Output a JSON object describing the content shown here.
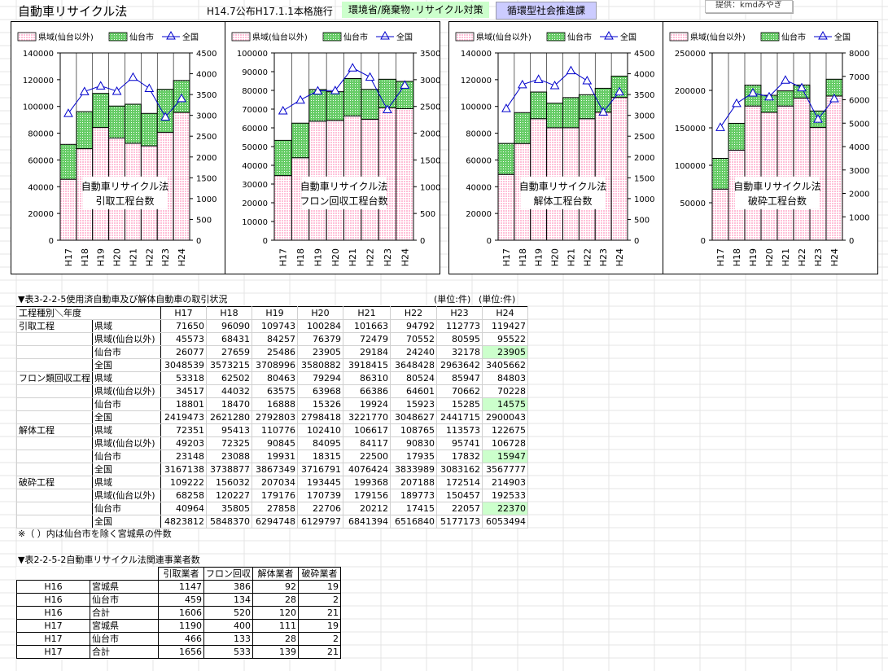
{
  "header": {
    "title": "自動車リサイクル法",
    "law_note": "H14.7公布H17.1.1本格施行",
    "ministry": "環境省/廃棄物･リサイクル対策",
    "section": "循環型社会推進課",
    "source_button": "提供：kmdみやぎ"
  },
  "colors": {
    "prefecture": "#ffc0d8",
    "sendai": "#66cc66",
    "national": "#0000cc"
  },
  "legend": {
    "prefecture": "県域(仙台以外)",
    "sendai": "仙台市",
    "national": "全国"
  },
  "chart_data": [
    {
      "type": "bar",
      "stacked": true,
      "categories": [
        "H17",
        "H18",
        "H19",
        "H20",
        "H21",
        "H22",
        "H23",
        "H24"
      ],
      "series": [
        {
          "name": "県域(仙台以外)",
          "values": [
            45573,
            68431,
            84257,
            76379,
            72479,
            70552,
            80595,
            95522
          ]
        },
        {
          "name": "仙台市",
          "values": [
            26077,
            27659,
            25486,
            23905,
            29184,
            24240,
            32178,
            23905
          ]
        },
        {
          "name": "全国",
          "axis": "right",
          "type": "line",
          "values": [
            3048539,
            3573215,
            3708996,
            3580882,
            3918415,
            3648428,
            2963642,
            3405662
          ]
        }
      ],
      "ylim": [
        0,
        140000
      ],
      "yticks": [
        "0",
        "20000",
        "40000",
        "60000",
        "80000",
        "100000",
        "120000",
        "140000"
      ],
      "y2lim": [
        0,
        4500000
      ],
      "y2ticks": [
        "0",
        "500",
        "1000",
        "1500",
        "2000",
        "2500",
        "3000",
        "3500",
        "4000",
        "4500"
      ],
      "annotation_line1": "自動車リサイクル法",
      "annotation_line2": "引取工程台数"
    },
    {
      "type": "bar",
      "stacked": true,
      "categories": [
        "H17",
        "H18",
        "H19",
        "H20",
        "H21",
        "H22",
        "H23",
        "H24"
      ],
      "series": [
        {
          "name": "県域(仙台以外)",
          "values": [
            34517,
            44032,
            63575,
            63968,
            66386,
            64601,
            70662,
            70228
          ]
        },
        {
          "name": "仙台市",
          "values": [
            18801,
            18470,
            16888,
            15326,
            19924,
            15923,
            15285,
            14575
          ]
        },
        {
          "name": "全国",
          "axis": "right",
          "type": "line",
          "values": [
            2419473,
            2621280,
            2792803,
            2798418,
            3221770,
            3048627,
            2441715,
            2900043
          ]
        }
      ],
      "ylim": [
        0,
        100000
      ],
      "yticks": [
        "0",
        "10000",
        "20000",
        "30000",
        "40000",
        "50000",
        "60000",
        "70000",
        "80000",
        "90000",
        "100000"
      ],
      "y2lim": [
        0,
        3500000
      ],
      "y2ticks": [
        "0",
        "500",
        "1000",
        "1500",
        "2000",
        "2500",
        "3000",
        "3500"
      ],
      "annotation_line1": "自動車リサイクル法",
      "annotation_line2": "フロン回収工程台数"
    },
    {
      "type": "bar",
      "stacked": true,
      "categories": [
        "H17",
        "H18",
        "H19",
        "H20",
        "H21",
        "H22",
        "H23",
        "H24"
      ],
      "series": [
        {
          "name": "県域(仙台以外)",
          "values": [
            49203,
            72325,
            90845,
            84095,
            84117,
            90830,
            95741,
            106728
          ]
        },
        {
          "name": "仙台市",
          "values": [
            23148,
            23088,
            19931,
            18315,
            22500,
            17935,
            17832,
            15947
          ]
        },
        {
          "name": "全国",
          "axis": "right",
          "type": "line",
          "values": [
            3167138,
            3738877,
            3867349,
            3716791,
            4076424,
            3833989,
            3083162,
            3567777
          ]
        }
      ],
      "ylim": [
        0,
        140000
      ],
      "yticks": [
        "0",
        "20000",
        "40000",
        "60000",
        "80000",
        "100000",
        "120000",
        "140000"
      ],
      "y2lim": [
        0,
        4500000
      ],
      "y2ticks": [
        "0",
        "500",
        "1000",
        "1500",
        "2000",
        "2500",
        "3000",
        "3500",
        "4000",
        "4500"
      ],
      "annotation_line1": "自動車リサイクル法",
      "annotation_line2": "解体工程台数"
    },
    {
      "type": "bar",
      "stacked": true,
      "categories": [
        "H17",
        "H18",
        "H19",
        "H20",
        "H21",
        "H22",
        "H23",
        "H24"
      ],
      "series": [
        {
          "name": "県域(仙台以外)",
          "values": [
            68258,
            120227,
            179176,
            170739,
            179156,
            189773,
            150457,
            192533
          ]
        },
        {
          "name": "仙台市",
          "values": [
            40964,
            35805,
            27858,
            22706,
            20212,
            17415,
            22057,
            22370
          ]
        },
        {
          "name": "全国",
          "axis": "right",
          "type": "line",
          "values": [
            4823812,
            5848370,
            6294748,
            6129797,
            6841394,
            6516840,
            5177173,
            6053494
          ]
        }
      ],
      "ylim": [
        0,
        250000
      ],
      "yticks": [
        "0",
        "50000",
        "100000",
        "150000",
        "200000",
        "250000"
      ],
      "y2lim": [
        0,
        8000000
      ],
      "y2ticks": [
        "0",
        "1000",
        "2000",
        "3000",
        "4000",
        "5000",
        "6000",
        "7000",
        "8000"
      ],
      "annotation_line1": "自動車リサイクル法",
      "annotation_line2": "破砕工程台数"
    }
  ],
  "table1": {
    "title": "▼表3-2-2-5使用済自動車及び解体自動車の取引状況",
    "unit1": "(単位:件)",
    "unit2": "(単位:件)",
    "corner": "工程種別＼年度",
    "years": [
      "H17",
      "H18",
      "H19",
      "H20",
      "H21",
      "H22",
      "H23",
      "H24"
    ],
    "groups": [
      {
        "name": "引取工程",
        "rows": [
          {
            "label": "県域",
            "values": [
              "71650",
              "96090",
              "109743",
              "100284",
              "101663",
              "94792",
              "112773",
              "119427"
            ]
          },
          {
            "label": "県域(仙台以外)",
            "values": [
              "45573",
              "68431",
              "84257",
              "76379",
              "72479",
              "70552",
              "80595",
              "95522"
            ]
          },
          {
            "label": "仙台市",
            "values": [
              "26077",
              "27659",
              "25486",
              "23905",
              "29184",
              "24240",
              "32178",
              "23905"
            ]
          },
          {
            "label": "全国",
            "values": [
              "3048539",
              "3573215",
              "3708996",
              "3580882",
              "3918415",
              "3648428",
              "2963642",
              "3405662"
            ]
          }
        ]
      },
      {
        "name": "フロン類回収工程",
        "rows": [
          {
            "label": "県域",
            "values": [
              "53318",
              "62502",
              "80463",
              "79294",
              "86310",
              "80524",
              "85947",
              "84803"
            ]
          },
          {
            "label": "県域(仙台以外)",
            "values": [
              "34517",
              "44032",
              "63575",
              "63968",
              "66386",
              "64601",
              "70662",
              "70228"
            ]
          },
          {
            "label": "仙台市",
            "values": [
              "18801",
              "18470",
              "16888",
              "15326",
              "19924",
              "15923",
              "15285",
              "14575"
            ]
          },
          {
            "label": "全国",
            "values": [
              "2419473",
              "2621280",
              "2792803",
              "2798418",
              "3221770",
              "3048627",
              "2441715",
              "2900043"
            ]
          }
        ]
      },
      {
        "name": "解体工程",
        "rows": [
          {
            "label": "県域",
            "values": [
              "72351",
              "95413",
              "110776",
              "102410",
              "106617",
              "108765",
              "113573",
              "122675"
            ]
          },
          {
            "label": "県域(仙台以外)",
            "values": [
              "49203",
              "72325",
              "90845",
              "84095",
              "84117",
              "90830",
              "95741",
              "106728"
            ]
          },
          {
            "label": "仙台市",
            "values": [
              "23148",
              "23088",
              "19931",
              "18315",
              "22500",
              "17935",
              "17832",
              "15947"
            ]
          },
          {
            "label": "全国",
            "values": [
              "3167138",
              "3738877",
              "3867349",
              "3716791",
              "4076424",
              "3833989",
              "3083162",
              "3567777"
            ]
          }
        ]
      },
      {
        "name": "破砕工程",
        "rows": [
          {
            "label": "県域",
            "values": [
              "109222",
              "156032",
              "207034",
              "193445",
              "199368",
              "207188",
              "172514",
              "214903"
            ]
          },
          {
            "label": "県域(仙台以外)",
            "values": [
              "68258",
              "120227",
              "179176",
              "170739",
              "179156",
              "189773",
              "150457",
              "192533"
            ]
          },
          {
            "label": "仙台市",
            "values": [
              "40964",
              "35805",
              "27858",
              "22706",
              "20212",
              "17415",
              "22057",
              "22370"
            ]
          },
          {
            "label": "全国",
            "values": [
              "4823812",
              "5848370",
              "6294748",
              "6129797",
              "6841394",
              "6516840",
              "5177173",
              "6053494"
            ]
          }
        ]
      }
    ],
    "note": "※（ ）内は仙台市を除く宮城県の件数"
  },
  "table2": {
    "title": "▼表2-2-5-2自動車リサイクル法関連事業者数",
    "headers": [
      "引取業者",
      "フロン回収",
      "解体業者",
      "破砕業者"
    ],
    "rows": [
      {
        "year": "H16",
        "area": "宮城県",
        "values": [
          "1147",
          "386",
          "92",
          "19"
        ]
      },
      {
        "year": "H16",
        "area": "仙台市",
        "values": [
          "459",
          "134",
          "28",
          "2"
        ]
      },
      {
        "year": "H16",
        "area": "合計",
        "values": [
          "1606",
          "520",
          "120",
          "21"
        ]
      },
      {
        "year": "H17",
        "area": "宮城県",
        "values": [
          "1190",
          "400",
          "111",
          "19"
        ]
      },
      {
        "year": "H17",
        "area": "仙台市",
        "values": [
          "466",
          "133",
          "28",
          "2"
        ]
      },
      {
        "year": "H17",
        "area": "合計",
        "values": [
          "1656",
          "533",
          "139",
          "21"
        ]
      }
    ]
  }
}
